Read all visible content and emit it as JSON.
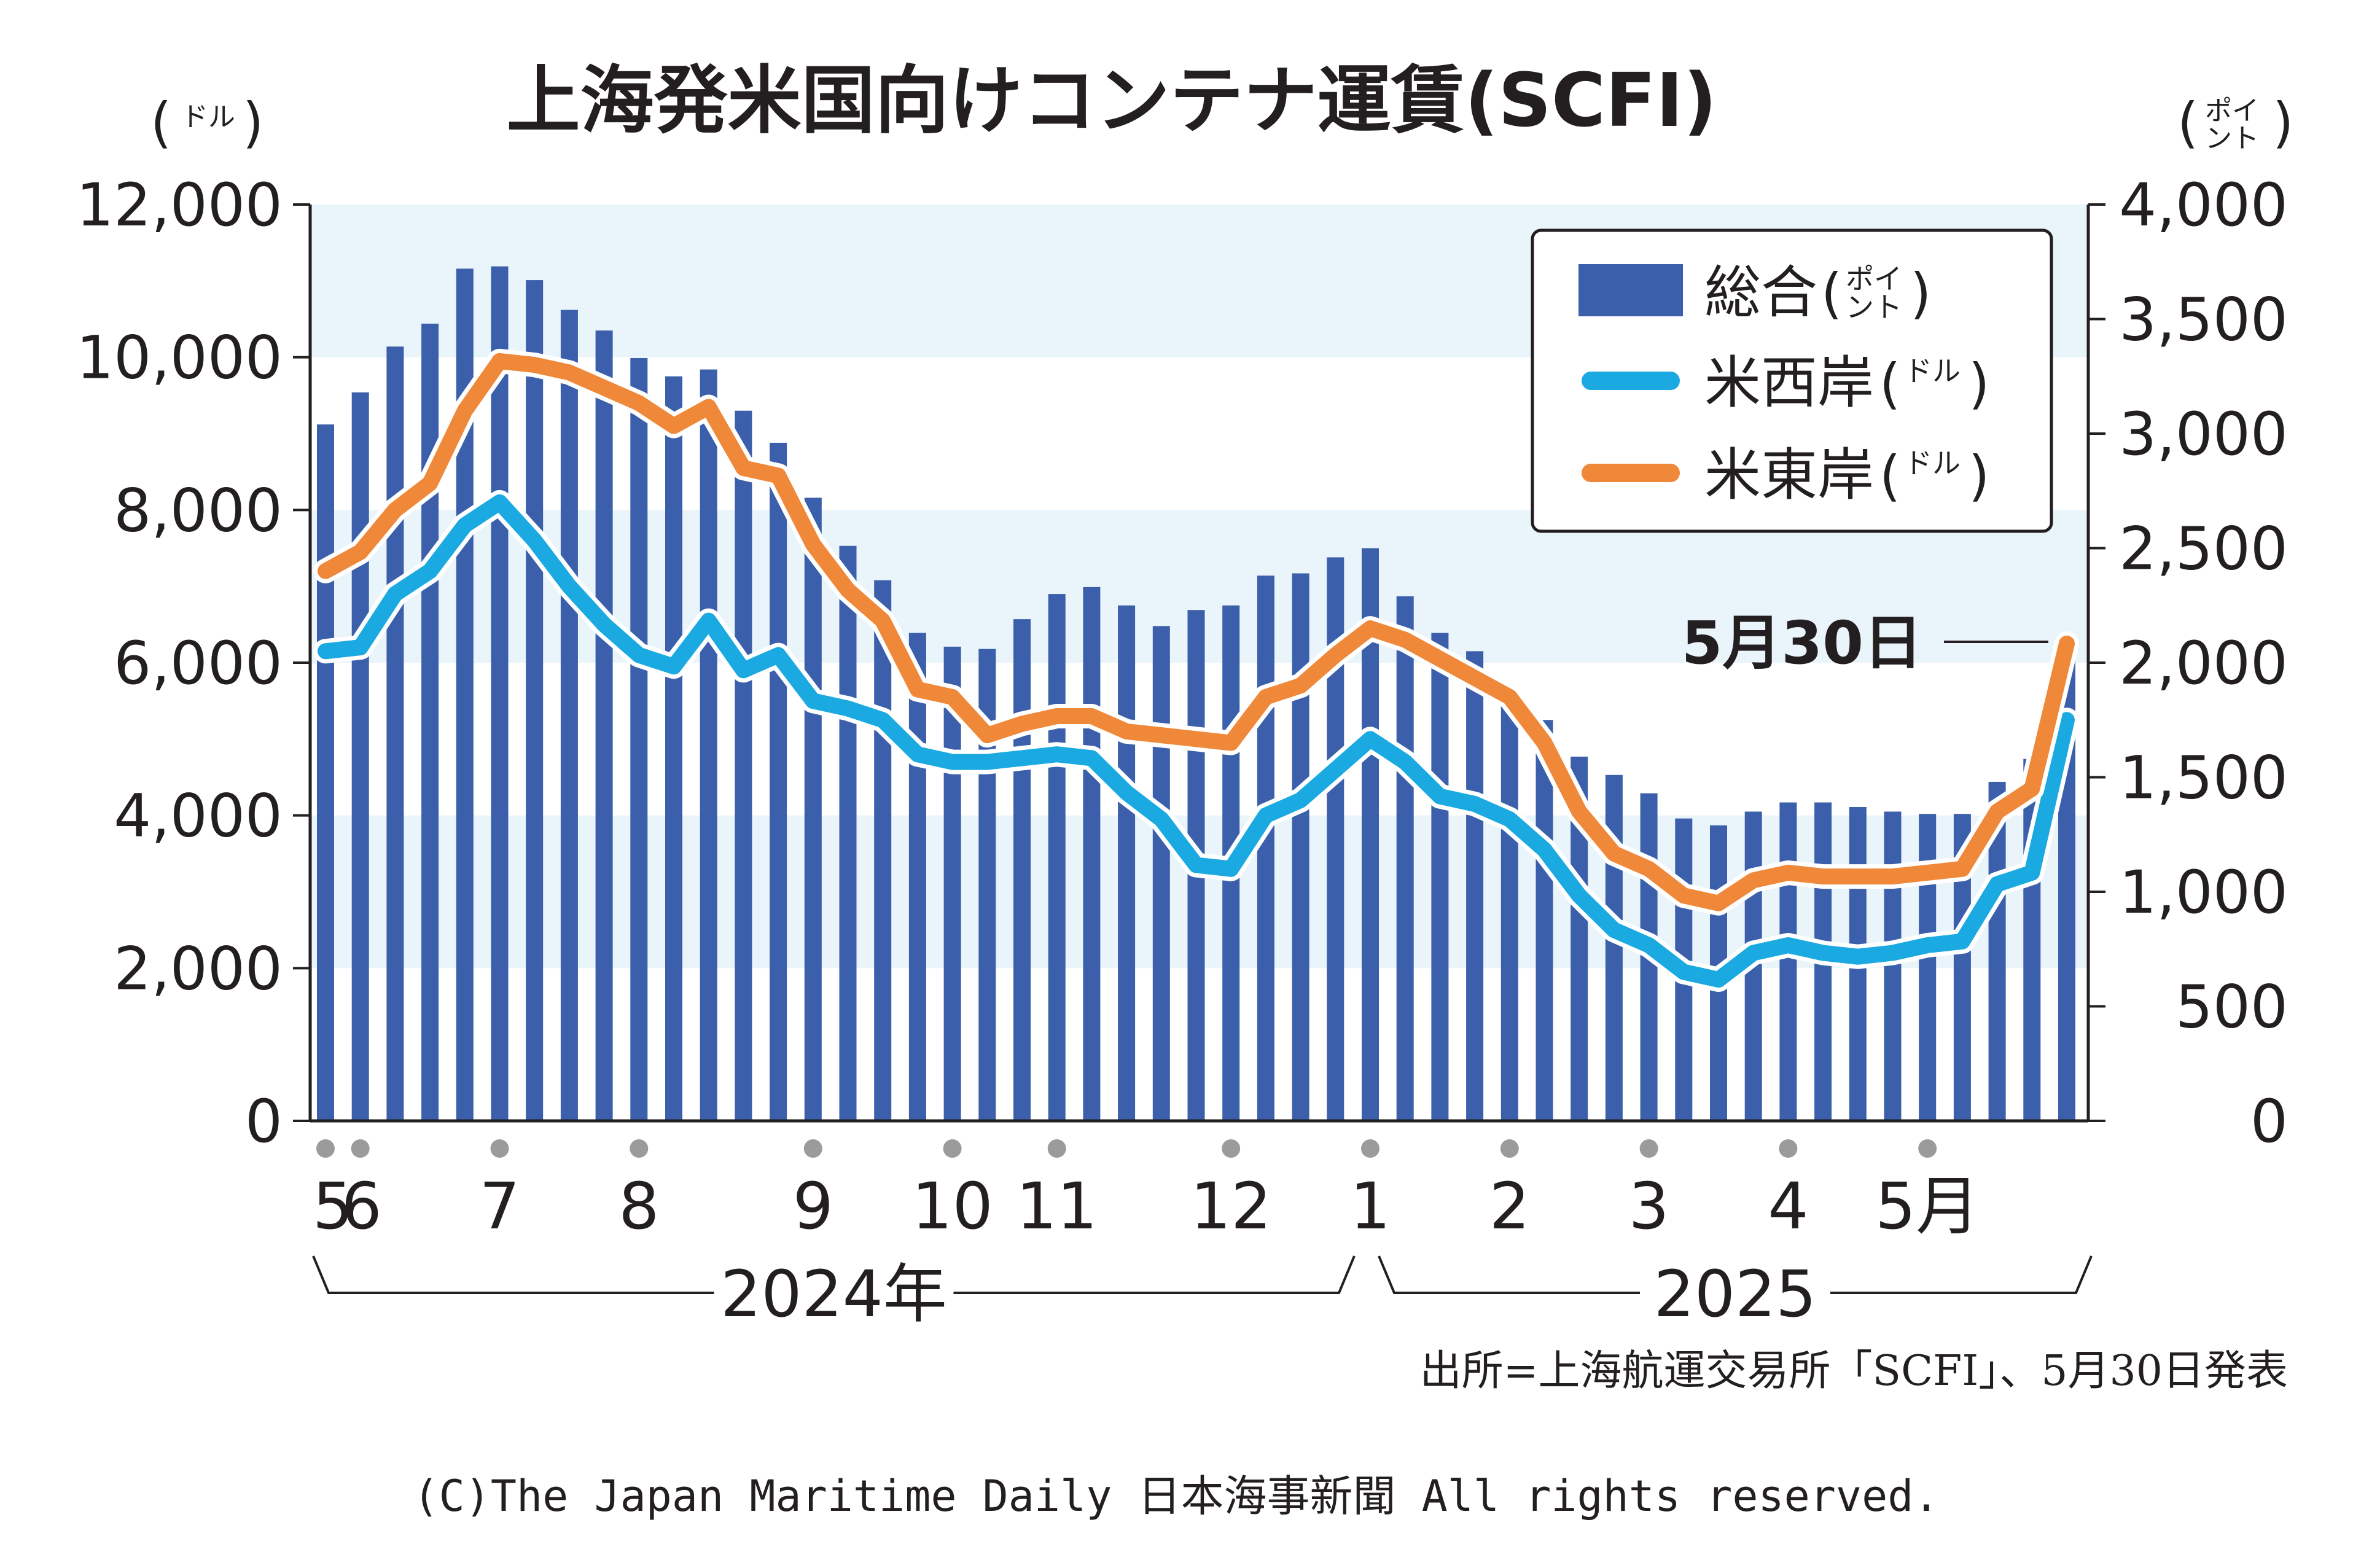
{
  "chart_data": {
    "type": "bar",
    "title": "上海発米国向けコンテナ運賃(SCFI)",
    "left_axis": {
      "unit_paren_open": "(",
      "unit_small": "ドル",
      "unit_paren_close": ")",
      "ylim": [
        0,
        12000
      ],
      "tick_labels": [
        "12,000",
        "10,000",
        "8,000",
        "6,000",
        "4,000",
        "2,000",
        "0"
      ],
      "tick_values": [
        12000,
        10000,
        8000,
        6000,
        4000,
        2000,
        0
      ]
    },
    "right_axis": {
      "unit_paren_open": "(",
      "unit_small_1": "ポイ",
      "unit_small_2": "ント",
      "unit_paren_close": ")",
      "ylim": [
        0,
        4000
      ],
      "tick_labels": [
        "4,000",
        "3,500",
        "3,000",
        "2,500",
        "2,000",
        "1,500",
        "1,000",
        "500",
        "0"
      ],
      "tick_values": [
        4000,
        3500,
        3000,
        2500,
        2000,
        1500,
        1000,
        500,
        0
      ]
    },
    "x_month_labels": [
      {
        "label": "5",
        "index": 0
      },
      {
        "label": "6",
        "index": 1
      },
      {
        "label": "7",
        "index": 5
      },
      {
        "label": "8",
        "index": 9
      },
      {
        "label": "9",
        "index": 14
      },
      {
        "label": "10",
        "index": 18
      },
      {
        "label": "11",
        "index": 21
      },
      {
        "label": "12",
        "index": 26
      },
      {
        "label": "1",
        "index": 30
      },
      {
        "label": "2",
        "index": 34
      },
      {
        "label": "3",
        "index": 38
      },
      {
        "label": "4",
        "index": 42
      },
      {
        "label": "5月",
        "index": 46
      }
    ],
    "year_labels": [
      {
        "label": "2024年",
        "from_index": 0,
        "to_index": 29.5
      },
      {
        "label": "2025",
        "from_index": 29.5,
        "to_index": 50
      }
    ],
    "series": [
      {
        "name": "総合",
        "name_unit_small_1": "ポイ",
        "name_unit_small_2": "ント",
        "axis": "right",
        "type": "bar",
        "color": "#3b5faa",
        "values": [
          3040,
          3180,
          3380,
          3480,
          3720,
          3730,
          3670,
          3540,
          3450,
          3330,
          3250,
          3280,
          3100,
          2960,
          2720,
          2510,
          2360,
          2130,
          2070,
          2060,
          2190,
          2300,
          2330,
          2250,
          2160,
          2230,
          2250,
          2380,
          2390,
          2460,
          2500,
          2290,
          2130,
          2050,
          1890,
          1750,
          1590,
          1510,
          1430,
          1320,
          1290,
          1350,
          1390,
          1390,
          1370,
          1350,
          1340,
          1340,
          1480,
          1580,
          2090
        ]
      },
      {
        "name": "米西岸",
        "name_unit_small": "ドル",
        "axis": "left",
        "type": "line",
        "color": "#1aa9e0",
        "values": [
          6150,
          6200,
          6900,
          7200,
          7800,
          8100,
          7600,
          7000,
          6500,
          6100,
          5950,
          6550,
          5900,
          6100,
          5500,
          5400,
          5250,
          4800,
          4700,
          4700,
          4750,
          4800,
          4750,
          4300,
          3950,
          3350,
          3300,
          4000,
          4200,
          4600,
          5000,
          4700,
          4250,
          4150,
          3950,
          3550,
          2950,
          2500,
          2300,
          1950,
          1850,
          2200,
          2300,
          2200,
          2150,
          2200,
          2300,
          2350,
          3100,
          3250,
          5250
        ]
      },
      {
        "name": "米東岸",
        "name_unit_small": "ドル",
        "axis": "left",
        "type": "line",
        "color": "#f0883a",
        "values": [
          7200,
          7450,
          8000,
          8350,
          9300,
          9950,
          9900,
          9800,
          9600,
          9400,
          9100,
          9350,
          8550,
          8450,
          7550,
          6950,
          6550,
          5650,
          5550,
          5050,
          5200,
          5300,
          5300,
          5100,
          5050,
          5000,
          4950,
          5550,
          5700,
          6100,
          6450,
          6300,
          6050,
          5800,
          5550,
          4950,
          4050,
          3500,
          3300,
          2950,
          2850,
          3150,
          3250,
          3200,
          3200,
          3200,
          3250,
          3300,
          4050,
          4350,
          6250
        ]
      }
    ],
    "annotation": {
      "label": "5月30日",
      "index": 50,
      "series": "米東岸"
    },
    "legend": {
      "position": "top-right"
    },
    "grid": "horizontal bands"
  },
  "source_note": "出所=上海航運交易所「SCFI」、5月30日発表",
  "copyright": "(C)The Japan Maritime Daily 日本海事新聞 All rights reserved.",
  "colors": {
    "bar": "#3b5faa",
    "west_coast": "#1aa9e0",
    "east_coast": "#f0883a",
    "band": "#eaf4fb",
    "axis": "#231f20",
    "dot": "#9b9b9b"
  }
}
